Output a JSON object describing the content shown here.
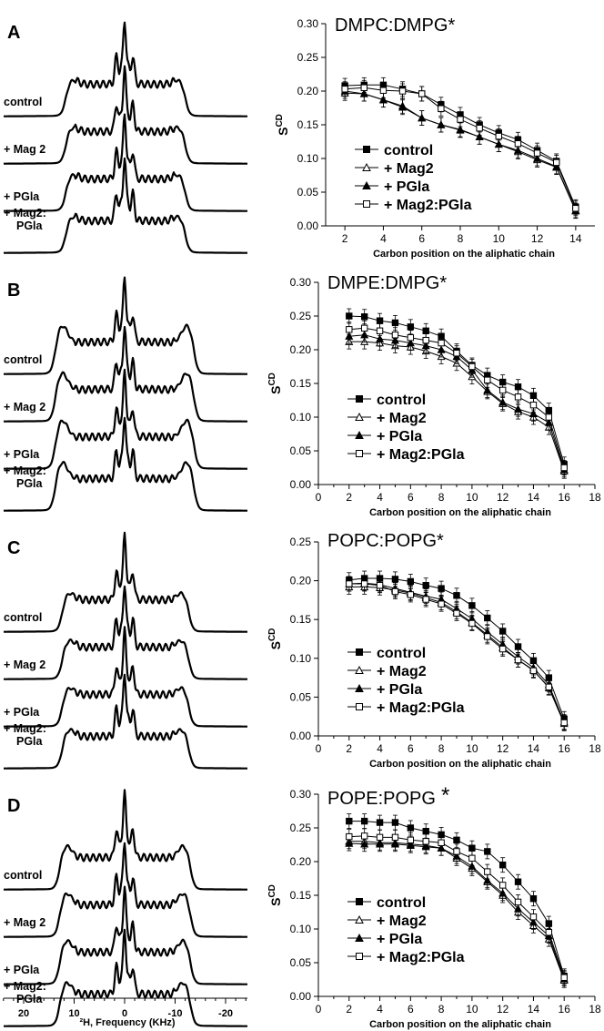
{
  "figure": {
    "spectra_axis_label": "²H, Frequency (KHz)",
    "spectra_ticks": [
      "20",
      "10",
      "0",
      "-10",
      "-20"
    ]
  },
  "panels": [
    {
      "letter": "A",
      "spectrum_labels": [
        "control",
        "+ Mag 2",
        "+ PGla",
        "+ Mag2:\nPGla"
      ]
    },
    {
      "letter": "B",
      "spectrum_labels": [
        "control",
        "+ Mag 2",
        "+ PGla",
        "+ Mag2:\nPGla"
      ]
    },
    {
      "letter": "C",
      "spectrum_labels": [
        "control",
        "+ Mag 2",
        "+ PGla",
        "+ Mag2:\nPGla"
      ]
    },
    {
      "letter": "D",
      "spectrum_labels": [
        "control",
        "+ Mag 2",
        "+ PGla",
        "+ Mag2:\nPGla"
      ]
    }
  ],
  "chart_data": [
    {
      "type": "line",
      "title": "DMPC:DMPG*",
      "xlabel": "Carbon position on the aliphatic chain",
      "ylabel": "SCD",
      "xlim": [
        1,
        15
      ],
      "ylim": [
        0,
        0.3
      ],
      "xticks": [
        2,
        4,
        6,
        8,
        10,
        12,
        14
      ],
      "yticks": [
        0.0,
        0.05,
        0.1,
        0.15,
        0.2,
        0.25,
        0.3
      ],
      "x": [
        2,
        3,
        4,
        5,
        6,
        7,
        8,
        9,
        10,
        11,
        12,
        13,
        14
      ],
      "legend_position": "lower-left",
      "series": [
        {
          "name": "control",
          "marker": "filled-square",
          "values": [
            0.208,
            0.209,
            0.209,
            0.203,
            0.196,
            0.18,
            0.165,
            0.15,
            0.138,
            0.128,
            0.112,
            0.096,
            0.028
          ]
        },
        {
          "name": "+ Mag2",
          "marker": "open-triangle",
          "values": [
            0.197,
            0.196,
            0.187,
            0.178,
            0.16,
            0.15,
            0.143,
            0.132,
            0.121,
            0.11,
            0.098,
            0.087,
            0.022
          ]
        },
        {
          "name": "+ PGla",
          "marker": "filled-triangle",
          "values": [
            0.2,
            0.196,
            0.187,
            0.176,
            0.16,
            0.15,
            0.142,
            0.132,
            0.121,
            0.112,
            0.1,
            0.088,
            0.023
          ]
        },
        {
          "name": "+ Mag2:PGla",
          "marker": "open-square",
          "values": [
            0.203,
            0.205,
            0.201,
            0.2,
            0.196,
            0.174,
            0.158,
            0.145,
            0.133,
            0.122,
            0.108,
            0.094,
            0.026
          ]
        }
      ]
    },
    {
      "type": "line",
      "title": "DMPE:DMPG*",
      "xlabel": "Carbon position on the aliphatic chain",
      "ylabel": "SCD",
      "xlim": [
        0,
        18
      ],
      "ylim": [
        0,
        0.3
      ],
      "xticks": [
        0,
        2,
        4,
        6,
        8,
        10,
        12,
        14,
        16,
        18
      ],
      "yticks": [
        0.0,
        0.05,
        0.1,
        0.15,
        0.2,
        0.25,
        0.3
      ],
      "x": [
        2,
        3,
        4,
        5,
        6,
        7,
        8,
        9,
        10,
        11,
        12,
        13,
        14,
        15,
        16
      ],
      "legend_position": "lower-left",
      "series": [
        {
          "name": "control",
          "marker": "filled-square",
          "values": [
            0.25,
            0.249,
            0.243,
            0.24,
            0.234,
            0.228,
            0.22,
            0.198,
            0.177,
            0.162,
            0.152,
            0.145,
            0.132,
            0.11,
            0.03
          ]
        },
        {
          "name": "+ Mag2",
          "marker": "open-triangle",
          "values": [
            0.212,
            0.212,
            0.21,
            0.206,
            0.204,
            0.198,
            0.19,
            0.18,
            0.16,
            0.138,
            0.12,
            0.108,
            0.1,
            0.085,
            0.02
          ]
        },
        {
          "name": "+ PGla",
          "marker": "filled-triangle",
          "values": [
            0.22,
            0.222,
            0.216,
            0.214,
            0.21,
            0.206,
            0.2,
            0.19,
            0.17,
            0.14,
            0.122,
            0.112,
            0.105,
            0.092,
            0.022
          ]
        },
        {
          "name": "+ Mag2:PGla",
          "marker": "open-square",
          "values": [
            0.23,
            0.232,
            0.228,
            0.222,
            0.218,
            0.214,
            0.21,
            0.195,
            0.175,
            0.155,
            0.14,
            0.13,
            0.118,
            0.1,
            0.025
          ]
        }
      ]
    },
    {
      "type": "line",
      "title": "POPC:POPG*",
      "xlabel": "Carbon position on the aliphatic chain",
      "ylabel": "SCD",
      "xlim": [
        0,
        18
      ],
      "ylim": [
        0,
        0.25
      ],
      "xticks": [
        0,
        2,
        4,
        6,
        8,
        10,
        12,
        14,
        16,
        18
      ],
      "yticks": [
        0.0,
        0.05,
        0.1,
        0.15,
        0.2,
        0.25
      ],
      "x": [
        2,
        3,
        4,
        5,
        6,
        7,
        8,
        9,
        10,
        11,
        12,
        13,
        14,
        15,
        16
      ],
      "legend_position": "lower-left",
      "series": [
        {
          "name": "control",
          "marker": "filled-square",
          "values": [
            0.201,
            0.203,
            0.203,
            0.202,
            0.199,
            0.194,
            0.19,
            0.181,
            0.168,
            0.152,
            0.135,
            0.115,
            0.097,
            0.075,
            0.022
          ]
        },
        {
          "name": "+ Mag2",
          "marker": "open-triangle",
          "values": [
            0.192,
            0.192,
            0.191,
            0.188,
            0.184,
            0.178,
            0.172,
            0.16,
            0.146,
            0.13,
            0.114,
            0.098,
            0.085,
            0.062,
            0.016
          ]
        },
        {
          "name": "+ PGla",
          "marker": "filled-triangle",
          "values": [
            0.196,
            0.197,
            0.195,
            0.19,
            0.185,
            0.18,
            0.176,
            0.164,
            0.151,
            0.134,
            0.118,
            0.102,
            0.088,
            0.066,
            0.018
          ]
        },
        {
          "name": "+ Mag2:PGla",
          "marker": "open-square",
          "values": [
            0.196,
            0.196,
            0.194,
            0.186,
            0.182,
            0.176,
            0.17,
            0.158,
            0.145,
            0.128,
            0.112,
            0.098,
            0.084,
            0.063,
            0.017
          ]
        }
      ]
    },
    {
      "type": "line",
      "title": "POPE:POPG",
      "title_suffix": "*",
      "xlabel": "Carbon position on the aliphatic chain",
      "ylabel": "SCD",
      "xlim": [
        0,
        18
      ],
      "ylim": [
        0,
        0.3
      ],
      "xticks": [
        0,
        2,
        4,
        6,
        8,
        10,
        12,
        14,
        16,
        18
      ],
      "yticks": [
        0.0,
        0.05,
        0.1,
        0.15,
        0.2,
        0.25,
        0.3
      ],
      "x": [
        2,
        3,
        4,
        5,
        6,
        7,
        8,
        9,
        10,
        11,
        12,
        13,
        14,
        15,
        16
      ],
      "legend_position": "lower-left",
      "series": [
        {
          "name": "control",
          "marker": "filled-square",
          "values": [
            0.26,
            0.26,
            0.258,
            0.258,
            0.25,
            0.245,
            0.24,
            0.232,
            0.22,
            0.215,
            0.195,
            0.17,
            0.145,
            0.108,
            0.03
          ]
        },
        {
          "name": "+ Mag2",
          "marker": "open-triangle",
          "values": [
            0.23,
            0.23,
            0.228,
            0.228,
            0.226,
            0.224,
            0.22,
            0.205,
            0.19,
            0.17,
            0.15,
            0.125,
            0.105,
            0.085,
            0.024
          ]
        },
        {
          "name": "+ PGla",
          "marker": "filled-triangle",
          "values": [
            0.227,
            0.226,
            0.226,
            0.226,
            0.224,
            0.222,
            0.22,
            0.208,
            0.193,
            0.172,
            0.153,
            0.13,
            0.11,
            0.09,
            0.026
          ]
        },
        {
          "name": "+ Mag2:PGla",
          "marker": "open-square",
          "values": [
            0.237,
            0.238,
            0.236,
            0.236,
            0.232,
            0.23,
            0.228,
            0.215,
            0.205,
            0.185,
            0.165,
            0.14,
            0.118,
            0.095,
            0.028
          ]
        }
      ]
    }
  ]
}
